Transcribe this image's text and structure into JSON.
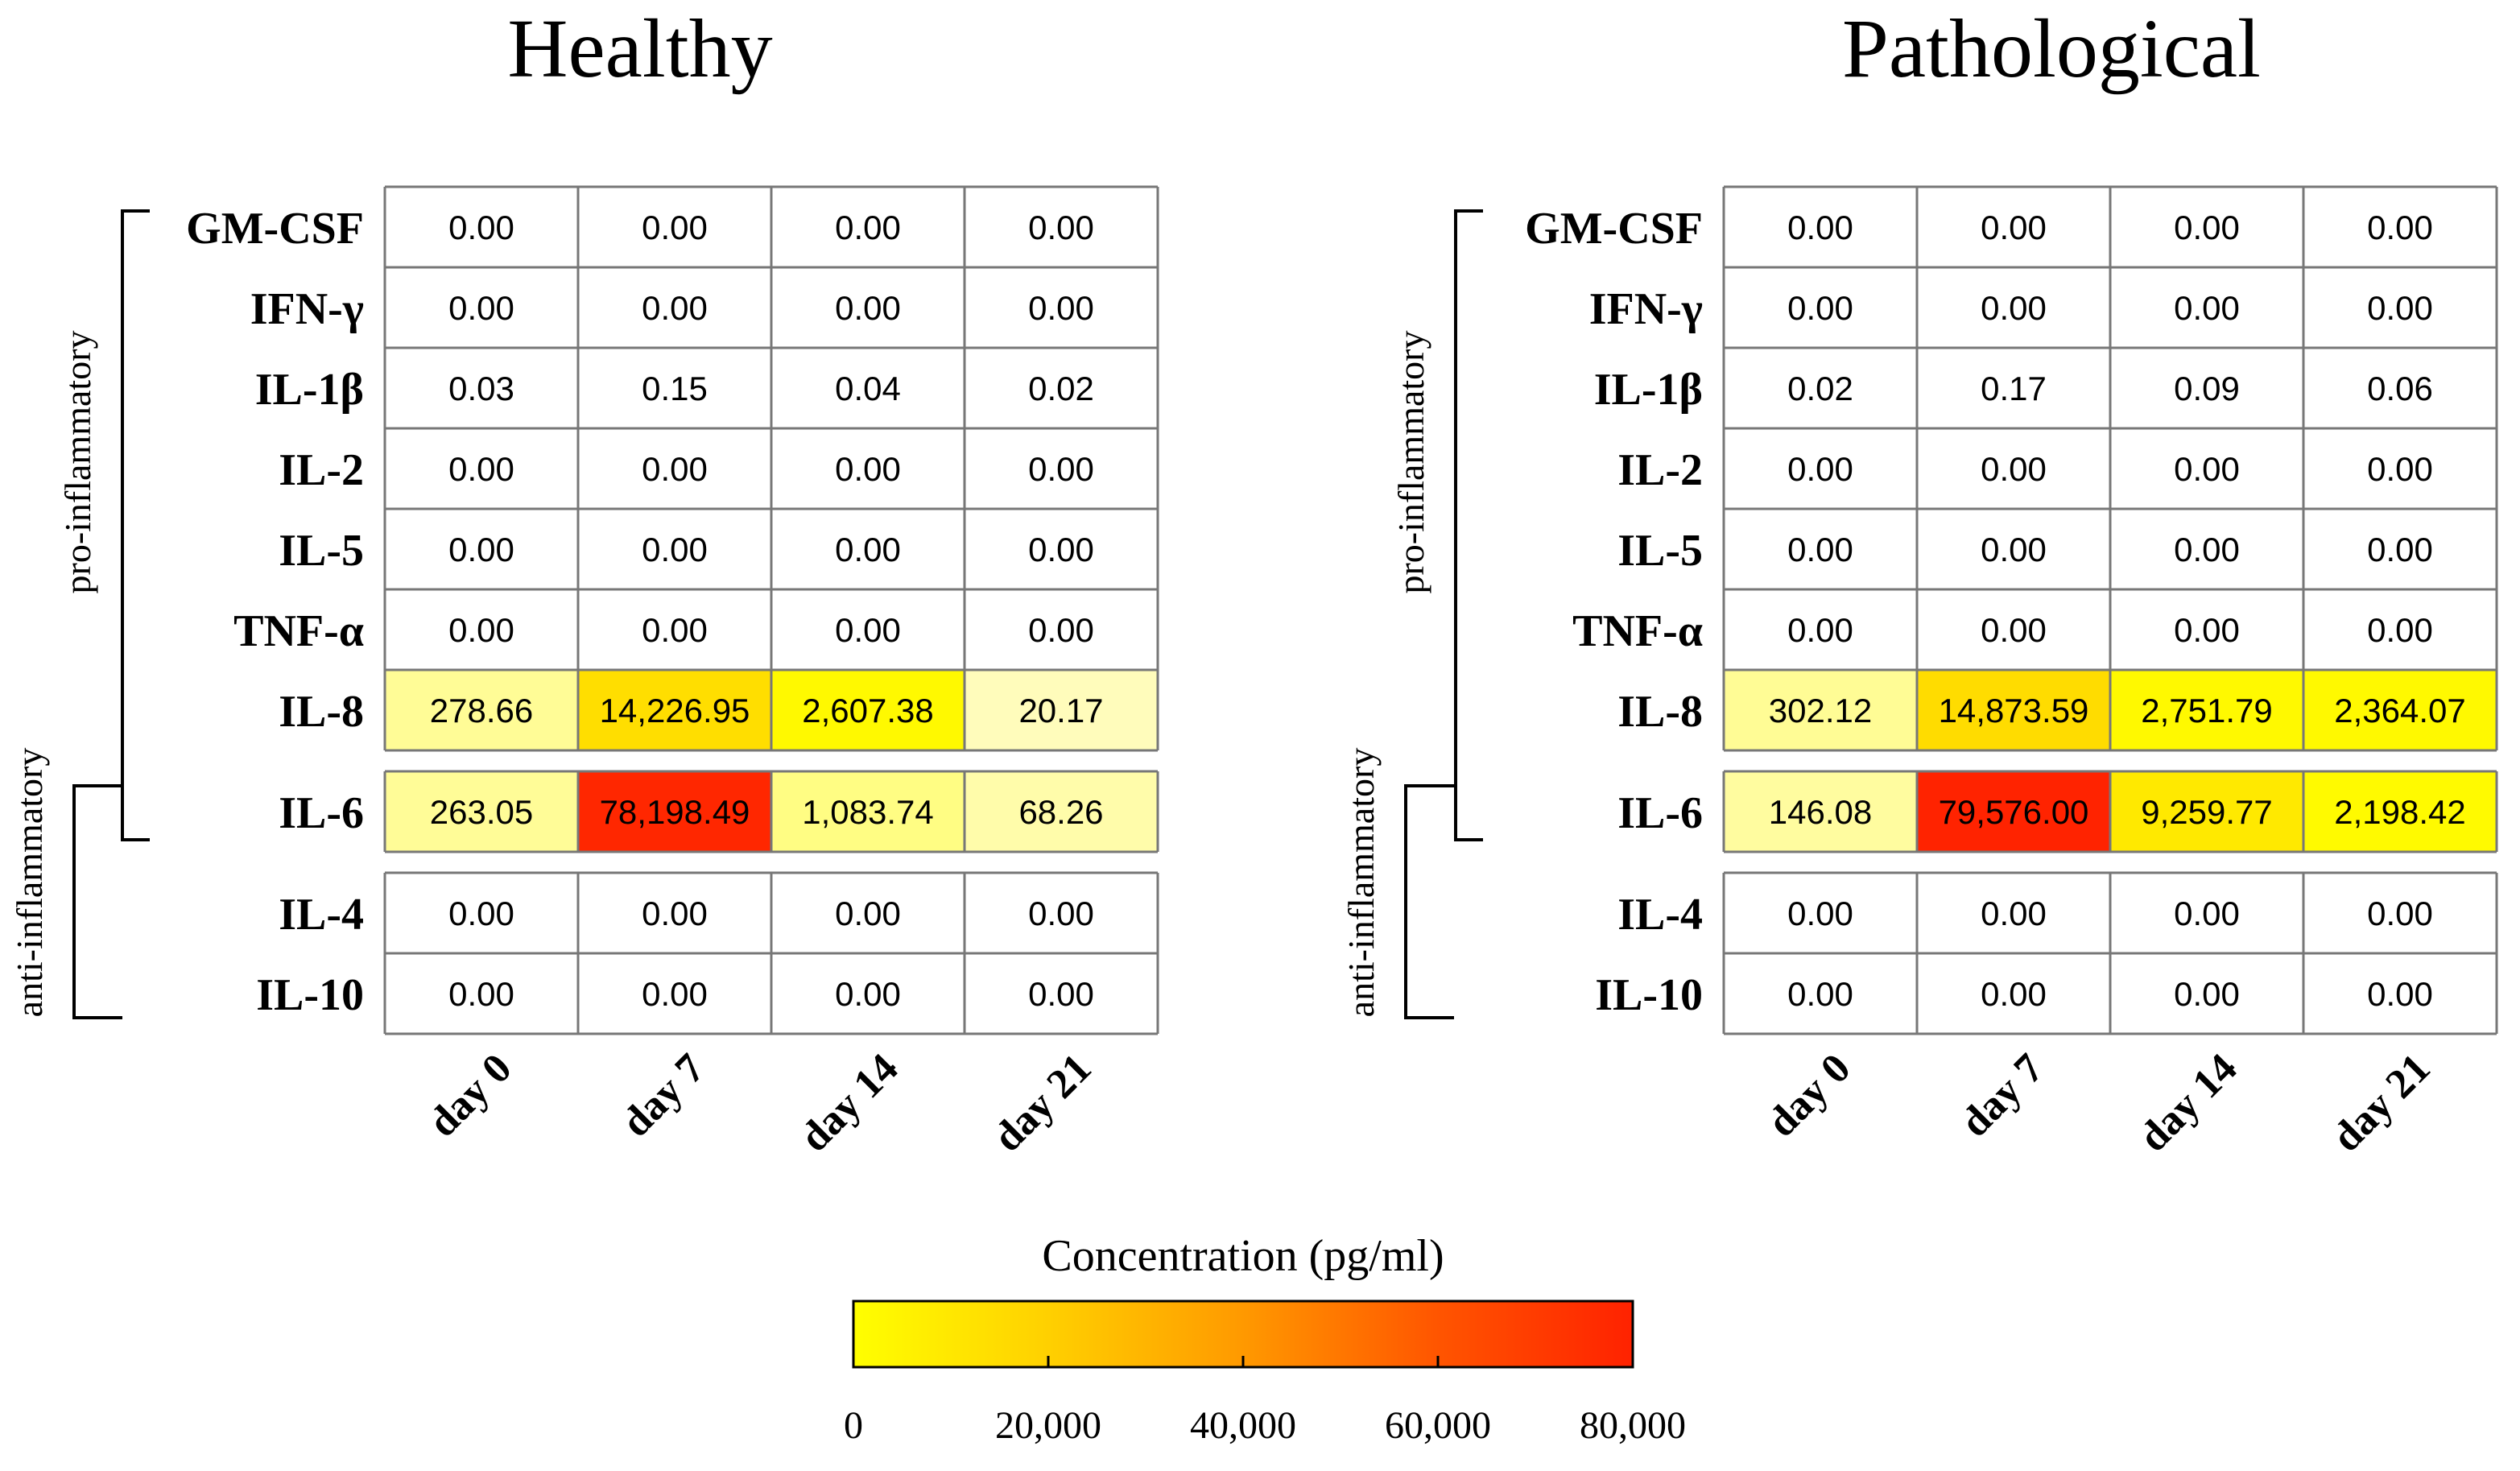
{
  "chart_data": [
    {
      "type": "heatmap",
      "title": "Healthy",
      "x_labels": [
        "day 0",
        "day 7",
        "day 14",
        "day 21"
      ],
      "groups": [
        {
          "rows": [
            "GM-CSF",
            "IFN-γ",
            "IL-1β",
            "IL-2",
            "IL-5",
            "TNF-α",
            "IL-8"
          ]
        },
        {
          "rows": [
            "IL-6"
          ]
        },
        {
          "rows": [
            "IL-4",
            "IL-10"
          ]
        }
      ],
      "values": [
        [
          0.0,
          0.0,
          0.0,
          0.0
        ],
        [
          0.0,
          0.0,
          0.0,
          0.0
        ],
        [
          0.03,
          0.15,
          0.04,
          0.02
        ],
        [
          0.0,
          0.0,
          0.0,
          0.0
        ],
        [
          0.0,
          0.0,
          0.0,
          0.0
        ],
        [
          0.0,
          0.0,
          0.0,
          0.0
        ],
        [
          278.66,
          14226.95,
          2607.38,
          20.17
        ],
        [
          263.05,
          78198.49,
          1083.74,
          68.26
        ],
        [
          0.0,
          0.0,
          0.0,
          0.0
        ],
        [
          0.0,
          0.0,
          0.0,
          0.0
        ]
      ],
      "value_labels": [
        [
          "0.00",
          "0.00",
          "0.00",
          "0.00"
        ],
        [
          "0.00",
          "0.00",
          "0.00",
          "0.00"
        ],
        [
          "0.03",
          "0.15",
          "0.04",
          "0.02"
        ],
        [
          "0.00",
          "0.00",
          "0.00",
          "0.00"
        ],
        [
          "0.00",
          "0.00",
          "0.00",
          "0.00"
        ],
        [
          "0.00",
          "0.00",
          "0.00",
          "0.00"
        ],
        [
          "278.66",
          "14,226.95",
          "2,607.38",
          "20.17"
        ],
        [
          "263.05",
          "78,198.49",
          "1,083.74",
          "68.26"
        ],
        [
          "0.00",
          "0.00",
          "0.00",
          "0.00"
        ],
        [
          "0.00",
          "0.00",
          "0.00",
          "0.00"
        ]
      ],
      "brackets": [
        {
          "label": "pro-inflammatory",
          "rows": [
            "GM-CSF",
            "IL-6"
          ]
        },
        {
          "label": "anti-inflammatory",
          "rows": [
            "IL-6",
            "IL-10"
          ]
        }
      ]
    },
    {
      "type": "heatmap",
      "title": "Pathological",
      "x_labels": [
        "day 0",
        "day 7",
        "day 14",
        "day 21"
      ],
      "groups": [
        {
          "rows": [
            "GM-CSF",
            "IFN-γ",
            "IL-1β",
            "IL-2",
            "IL-5",
            "TNF-α",
            "IL-8"
          ]
        },
        {
          "rows": [
            "IL-6"
          ]
        },
        {
          "rows": [
            "IL-4",
            "IL-10"
          ]
        }
      ],
      "values": [
        [
          0.0,
          0.0,
          0.0,
          0.0
        ],
        [
          0.0,
          0.0,
          0.0,
          0.0
        ],
        [
          0.02,
          0.17,
          0.09,
          0.06
        ],
        [
          0.0,
          0.0,
          0.0,
          0.0
        ],
        [
          0.0,
          0.0,
          0.0,
          0.0
        ],
        [
          0.0,
          0.0,
          0.0,
          0.0
        ],
        [
          302.12,
          14873.59,
          2751.79,
          2364.07
        ],
        [
          146.08,
          79576.0,
          9259.77,
          2198.42
        ],
        [
          0.0,
          0.0,
          0.0,
          0.0
        ],
        [
          0.0,
          0.0,
          0.0,
          0.0
        ]
      ],
      "value_labels": [
        [
          "0.00",
          "0.00",
          "0.00",
          "0.00"
        ],
        [
          "0.00",
          "0.00",
          "0.00",
          "0.00"
        ],
        [
          "0.02",
          "0.17",
          "0.09",
          "0.06"
        ],
        [
          "0.00",
          "0.00",
          "0.00",
          "0.00"
        ],
        [
          "0.00",
          "0.00",
          "0.00",
          "0.00"
        ],
        [
          "0.00",
          "0.00",
          "0.00",
          "0.00"
        ],
        [
          "302.12",
          "14,873.59",
          "2,751.79",
          "2,364.07"
        ],
        [
          "146.08",
          "79,576.00",
          "9,259.77",
          "2,198.42"
        ],
        [
          "0.00",
          "0.00",
          "0.00",
          "0.00"
        ],
        [
          "0.00",
          "0.00",
          "0.00",
          "0.00"
        ]
      ],
      "brackets": [
        {
          "label": "pro-inflammatory",
          "rows": [
            "GM-CSF",
            "IL-6"
          ]
        },
        {
          "label": "anti-inflammatory",
          "rows": [
            "IL-6",
            "IL-10"
          ]
        }
      ]
    }
  ],
  "colorbar": {
    "title": "Concentration (pg/ml)",
    "range": [
      0,
      80000
    ],
    "ticks": [
      0,
      20000,
      40000,
      60000,
      80000
    ],
    "tick_labels": [
      "0",
      "20,000",
      "40,000",
      "60,000",
      "80,000"
    ],
    "colors": [
      "#ffff00",
      "#ffd000",
      "#ff9900",
      "#ff5500",
      "#ff2200"
    ],
    "zero_color": "#ffffff",
    "low_tint_color": "#fffbe6"
  },
  "colors": {
    "grid_line": "#777777",
    "text": "#000000"
  }
}
